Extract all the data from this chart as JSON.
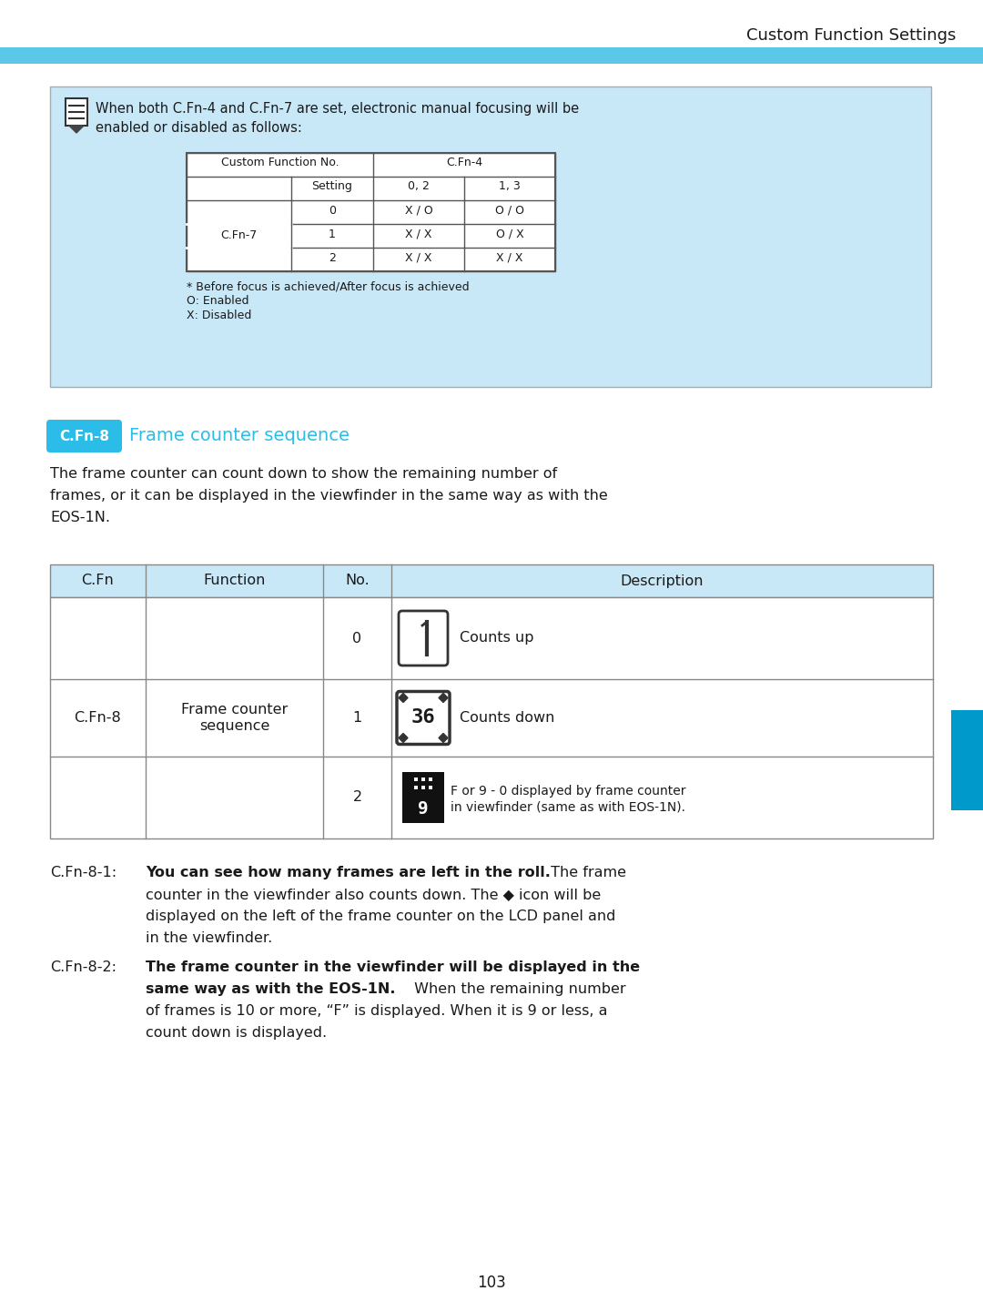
{
  "page_title": "Custom Function Settings",
  "page_number": "103",
  "header_bar_color": "#5BC8E8",
  "bg_color": "#FFFFFF",
  "light_blue_bg": "#C8E8F8",
  "dark_text": "#1a1a1a",
  "cyan_label_bg": "#2BBDE8",
  "cyan_label_text": "#FFFFFF",
  "section_heading": "Frame counter sequence",
  "section_label": "C.Fn-8",
  "note_text_line1": "When both C.Fn-4 and C.Fn-7 are set, electronic manual focusing will be",
  "note_text_line2": "enabled or disabled as follows:",
  "inner_table_header1": "Custom Function No.",
  "inner_table_header2": "C.Fn-4",
  "inner_table_sub_headers": [
    "Setting",
    "0, 2",
    "1, 3"
  ],
  "inner_table_rows": [
    [
      "C.Fn-7",
      "0",
      "X / O",
      "O / O"
    ],
    [
      "",
      "1",
      "X / X",
      "O / X"
    ],
    [
      "",
      "2",
      "X / X",
      "X / X"
    ]
  ],
  "note_footnotes": [
    "* Before focus is achieved/After focus is achieved",
    "O: Enabled",
    "X: Disabled"
  ],
  "desc_line1": "The frame counter can count down to show the remaining number of",
  "desc_line2": "frames, or it can be displayed in the viewfinder in the same way as with the",
  "desc_line3": "EOS-1N.",
  "main_table_headers": [
    "C.Fn",
    "Function",
    "No.",
    "Description"
  ],
  "numbers": [
    "0",
    "1",
    "2"
  ],
  "desc_short": [
    "Counts up",
    "Counts down"
  ],
  "desc_long": "F or 9 - 0 displayed by frame counter\nin viewfinder (same as with EOS-1N).",
  "cfn81_label": "C.Fn-8-1:",
  "cfn81_bold": "You can see how many frames are left in the roll.",
  "cfn81_n1": " The frame",
  "cfn81_n2": "counter in the viewfinder also counts down. The ◆ icon will be",
  "cfn81_n3": "displayed on the left of the frame counter on the LCD panel and",
  "cfn81_n4": "in the viewfinder.",
  "cfn82_label": "C.Fn-8-2:",
  "cfn82_bold1": "The frame counter in the viewfinder will be displayed in the",
  "cfn82_bold2": "same way as with the EOS-1N.",
  "cfn82_n1": " When the remaining number",
  "cfn82_n2": "of frames is 10 or more, “F” is displayed. When it is 9 or less, a",
  "cfn82_n3": "count down is displayed.",
  "blue_tab_color": "#0099CC"
}
